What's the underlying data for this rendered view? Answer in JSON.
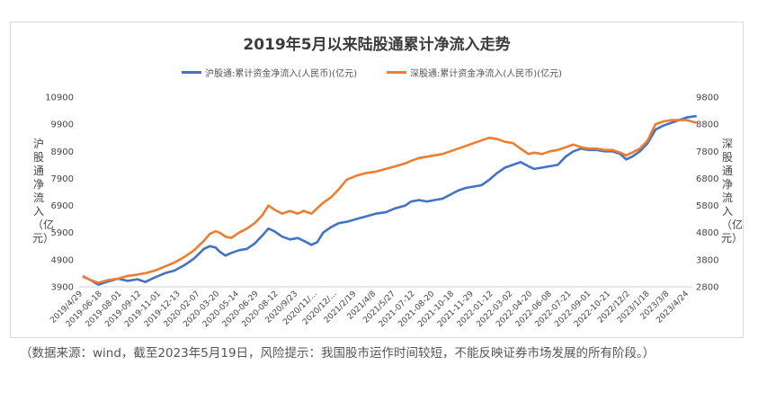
{
  "chart_data": {
    "type": "line",
    "title": "2019年5月以来陆股通累计净流入走势",
    "left_axis": {
      "label": "沪股通净流入（亿元）",
      "ticks": [
        3900,
        4900,
        5900,
        6900,
        7900,
        8900,
        9900,
        10900
      ],
      "range": [
        3900,
        10900
      ]
    },
    "right_axis": {
      "label": "深股通净流入（亿元）",
      "ticks": [
        2800,
        3800,
        4800,
        5800,
        6800,
        7800,
        8800,
        9800
      ],
      "range": [
        2800,
        9800
      ]
    },
    "x_tick_labels": [
      "2019/4/29",
      "2019-06-18",
      "2019-08-01",
      "2019-09-12",
      "2019-11-01",
      "2019-12-13",
      "2020-02-07",
      "2020-03-20",
      "2020-05-14",
      "2020-06-29",
      "2020-08-12",
      "2020/9/23",
      "2020/11/...",
      "2020/12/...",
      "2021/2/19",
      "2021/4/8",
      "2021/5/27",
      "2021-07-12",
      "2021-08-20",
      "2021-10-18",
      "2021-11-29",
      "2022-01-12",
      "2022-03-02",
      "2022-04-20",
      "2022-06-08",
      "2022-07-21",
      "2022-09-01",
      "2022-10-21",
      "2022/12/2",
      "2023/1/18",
      "2023/3/8",
      "2023/4/24"
    ],
    "series": [
      {
        "name": "沪股通:累计资金净流入(人民币)(亿元)",
        "axis": "left",
        "color": "#4472C4",
        "points": [
          [
            0,
            4280
          ],
          [
            0.4,
            4150
          ],
          [
            0.8,
            3980
          ],
          [
            1.3,
            4100
          ],
          [
            1.8,
            4200
          ],
          [
            2.3,
            4120
          ],
          [
            2.8,
            4180
          ],
          [
            3.2,
            4080
          ],
          [
            3.7,
            4250
          ],
          [
            4.2,
            4400
          ],
          [
            4.7,
            4500
          ],
          [
            5.2,
            4700
          ],
          [
            5.7,
            4950
          ],
          [
            6.2,
            5300
          ],
          [
            6.5,
            5400
          ],
          [
            6.8,
            5350
          ],
          [
            7.0,
            5200
          ],
          [
            7.3,
            5050
          ],
          [
            7.6,
            5150
          ],
          [
            8.0,
            5250
          ],
          [
            8.4,
            5300
          ],
          [
            8.8,
            5500
          ],
          [
            9.2,
            5800
          ],
          [
            9.5,
            6050
          ],
          [
            9.8,
            5950
          ],
          [
            10.2,
            5750
          ],
          [
            10.6,
            5650
          ],
          [
            11.0,
            5700
          ],
          [
            11.3,
            5600
          ],
          [
            11.7,
            5450
          ],
          [
            12.0,
            5550
          ],
          [
            12.3,
            5900
          ],
          [
            12.7,
            6100
          ],
          [
            13.1,
            6250
          ],
          [
            13.5,
            6300
          ],
          [
            14.0,
            6400
          ],
          [
            14.5,
            6500
          ],
          [
            15.0,
            6600
          ],
          [
            15.5,
            6650
          ],
          [
            16.0,
            6800
          ],
          [
            16.5,
            6900
          ],
          [
            16.8,
            7050
          ],
          [
            17.2,
            7100
          ],
          [
            17.6,
            7050
          ],
          [
            18.0,
            7100
          ],
          [
            18.4,
            7150
          ],
          [
            18.8,
            7300
          ],
          [
            19.2,
            7450
          ],
          [
            19.6,
            7550
          ],
          [
            20.0,
            7600
          ],
          [
            20.4,
            7650
          ],
          [
            20.8,
            7850
          ],
          [
            21.2,
            8100
          ],
          [
            21.6,
            8300
          ],
          [
            22.0,
            8400
          ],
          [
            22.4,
            8500
          ],
          [
            22.8,
            8350
          ],
          [
            23.1,
            8250
          ],
          [
            23.5,
            8300
          ],
          [
            23.9,
            8350
          ],
          [
            24.3,
            8400
          ],
          [
            24.7,
            8700
          ],
          [
            25.1,
            8900
          ],
          [
            25.5,
            9000
          ],
          [
            25.9,
            8950
          ],
          [
            26.3,
            8950
          ],
          [
            26.7,
            8900
          ],
          [
            27.1,
            8900
          ],
          [
            27.5,
            8800
          ],
          [
            27.8,
            8600
          ],
          [
            28.1,
            8700
          ],
          [
            28.5,
            8900
          ],
          [
            28.9,
            9200
          ],
          [
            29.3,
            9700
          ],
          [
            29.7,
            9850
          ],
          [
            30.1,
            9950
          ],
          [
            30.5,
            10050
          ],
          [
            30.9,
            10150
          ],
          [
            31.4,
            10200
          ]
        ]
      },
      {
        "name": "深股通:累计资金净流入(人民币)(亿元)",
        "axis": "right",
        "color": "#ED7D31",
        "points": [
          [
            0,
            3200
          ],
          [
            0.4,
            3050
          ],
          [
            0.8,
            2950
          ],
          [
            1.3,
            3050
          ],
          [
            1.8,
            3100
          ],
          [
            2.3,
            3200
          ],
          [
            2.8,
            3250
          ],
          [
            3.2,
            3300
          ],
          [
            3.7,
            3400
          ],
          [
            4.2,
            3550
          ],
          [
            4.7,
            3700
          ],
          [
            5.2,
            3900
          ],
          [
            5.7,
            4150
          ],
          [
            6.2,
            4500
          ],
          [
            6.5,
            4750
          ],
          [
            6.8,
            4850
          ],
          [
            7.0,
            4800
          ],
          [
            7.3,
            4650
          ],
          [
            7.6,
            4600
          ],
          [
            8.0,
            4800
          ],
          [
            8.4,
            4950
          ],
          [
            8.8,
            5150
          ],
          [
            9.2,
            5450
          ],
          [
            9.5,
            5800
          ],
          [
            9.8,
            5650
          ],
          [
            10.2,
            5500
          ],
          [
            10.6,
            5600
          ],
          [
            11.0,
            5500
          ],
          [
            11.3,
            5600
          ],
          [
            11.7,
            5500
          ],
          [
            12.0,
            5700
          ],
          [
            12.3,
            5900
          ],
          [
            12.7,
            6100
          ],
          [
            13.1,
            6400
          ],
          [
            13.5,
            6750
          ],
          [
            14.0,
            6900
          ],
          [
            14.5,
            7000
          ],
          [
            15.0,
            7050
          ],
          [
            15.5,
            7150
          ],
          [
            16.0,
            7250
          ],
          [
            16.5,
            7350
          ],
          [
            16.8,
            7450
          ],
          [
            17.2,
            7550
          ],
          [
            17.6,
            7600
          ],
          [
            18.0,
            7650
          ],
          [
            18.4,
            7700
          ],
          [
            18.8,
            7800
          ],
          [
            19.2,
            7900
          ],
          [
            19.6,
            8000
          ],
          [
            20.0,
            8100
          ],
          [
            20.4,
            8200
          ],
          [
            20.8,
            8300
          ],
          [
            21.2,
            8250
          ],
          [
            21.6,
            8150
          ],
          [
            22.0,
            8100
          ],
          [
            22.4,
            7900
          ],
          [
            22.8,
            7700
          ],
          [
            23.1,
            7750
          ],
          [
            23.5,
            7700
          ],
          [
            23.9,
            7800
          ],
          [
            24.3,
            7850
          ],
          [
            24.7,
            7950
          ],
          [
            25.1,
            8050
          ],
          [
            25.5,
            7950
          ],
          [
            25.9,
            7900
          ],
          [
            26.3,
            7900
          ],
          [
            26.7,
            7850
          ],
          [
            27.1,
            7850
          ],
          [
            27.5,
            7750
          ],
          [
            27.8,
            7650
          ],
          [
            28.1,
            7750
          ],
          [
            28.5,
            7900
          ],
          [
            28.9,
            8200
          ],
          [
            29.3,
            8800
          ],
          [
            29.7,
            8900
          ],
          [
            30.1,
            8950
          ],
          [
            30.5,
            8950
          ],
          [
            30.9,
            8950
          ],
          [
            31.4,
            8850
          ]
        ]
      }
    ],
    "legend_placement": "top",
    "grid": false
  },
  "caption": "（数据来源：wind，截至2023年5月19日，风险提示：我国股市运作时间较短，不能反映证券市场发展的所有阶段。）"
}
